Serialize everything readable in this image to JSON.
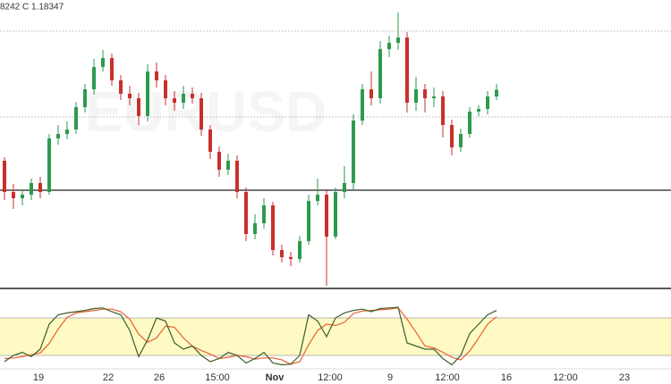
{
  "chart_data": {
    "type": "candlestick",
    "symbol_watermark": "EURUSD",
    "ohlc_text": "8242  C 1.18347",
    "up_color": "#2e9a4e",
    "down_color": "#c9302c",
    "ylim": [
      1.17235,
      1.1885
    ],
    "open": [
      1.1795,
      1.17775,
      1.1774,
      1.1776,
      1.17825,
      1.17775,
      1.18075,
      1.181,
      1.18125,
      1.1825,
      1.1835,
      1.18475,
      1.18525,
      1.184,
      1.18325,
      1.183,
      1.182,
      1.1845,
      1.184,
      1.183,
      1.18275,
      1.18325,
      1.183,
      1.18125,
      1.18,
      1.179,
      1.1795,
      1.17775,
      1.1754,
      1.176,
      1.177,
      1.1745,
      1.1741,
      1.174,
      1.175,
      1.17725,
      1.1776,
      1.17525,
      1.17775,
      1.17825,
      1.18175,
      1.1835,
      1.183,
      1.18575,
      1.1861,
      1.1864,
      1.18275,
      1.1835,
      1.183,
      1.1831,
      1.1815,
      1.18025,
      1.181,
      1.18225,
      1.1824,
      1.1831
    ],
    "high": [
      1.1797,
      1.1782,
      1.1779,
      1.1785,
      1.1786,
      1.181,
      1.1815,
      1.1817,
      1.1828,
      1.1838,
      1.1852,
      1.1857,
      1.1855,
      1.1843,
      1.1837,
      1.1833,
      1.1849,
      1.185,
      1.1843,
      1.1834,
      1.1837,
      1.1836,
      1.1833,
      1.1815,
      1.1803,
      1.1799,
      1.1798,
      1.178,
      1.1765,
      1.1774,
      1.1772,
      1.1748,
      1.1744,
      1.1753,
      1.1776,
      1.1785,
      1.1779,
      1.178,
      1.1792,
      1.1821,
      1.1838,
      1.1845,
      1.1862,
      1.1865,
      1.1878,
      1.1867,
      1.1842,
      1.1838,
      1.1836,
      1.1834,
      1.1818,
      1.1813,
      1.1825,
      1.1826,
      1.1834,
      1.1838
    ],
    "low": [
      1.1773,
      1.1768,
      1.177,
      1.1773,
      1.1774,
      1.1776,
      1.1804,
      1.1807,
      1.181,
      1.1822,
      1.1832,
      1.1845,
      1.1837,
      1.1829,
      1.1826,
      1.1815,
      1.1817,
      1.1836,
      1.1826,
      1.1823,
      1.1824,
      1.1827,
      1.1809,
      1.1796,
      1.1786,
      1.1787,
      1.1774,
      1.175,
      1.1751,
      1.1757,
      1.1742,
      1.1738,
      1.1736,
      1.1738,
      1.1748,
      1.177,
      1.1725,
      1.1751,
      1.1774,
      1.1779,
      1.1815,
      1.1826,
      1.1827,
      1.1853,
      1.1857,
      1.1822,
      1.1823,
      1.1822,
      1.1825,
      1.1808,
      1.1798,
      1.18,
      1.1808,
      1.182,
      1.1821,
      1.1829
    ],
    "close": [
      1.17775,
      1.1774,
      1.1776,
      1.17825,
      1.17775,
      1.18075,
      1.181,
      1.18125,
      1.1825,
      1.1835,
      1.18475,
      1.18525,
      1.184,
      1.18325,
      1.183,
      1.182,
      1.1845,
      1.184,
      1.183,
      1.18275,
      1.18325,
      1.183,
      1.18125,
      1.18,
      1.179,
      1.1795,
      1.17775,
      1.1754,
      1.176,
      1.177,
      1.1745,
      1.1741,
      1.174,
      1.175,
      1.17725,
      1.1776,
      1.17525,
      1.17775,
      1.17825,
      1.18175,
      1.1835,
      1.183,
      1.18575,
      1.1861,
      1.1864,
      1.18275,
      1.1835,
      1.183,
      1.1831,
      1.1815,
      1.18025,
      1.181,
      1.18225,
      1.1824,
      1.1831,
      1.18347
    ],
    "levels": [
      {
        "value": 1.18675,
        "style": "dotted",
        "color": "#9e9e9e"
      },
      {
        "value": 1.18195,
        "style": "dotted",
        "color": "#9e9e9e"
      },
      {
        "value": 1.17785,
        "style": "solid",
        "color": "#222222"
      }
    ],
    "x_labels": [
      "19",
      "22",
      "26",
      "15:00",
      "Nov",
      "12:00",
      "9",
      "12:00",
      "16",
      "12:00",
      "23"
    ],
    "oscillator": {
      "type": "line",
      "ylim": [
        0,
        100
      ],
      "band": [
        20,
        80
      ],
      "band_color": "#fff9c4",
      "series": [
        {
          "color": "#3b5e2b",
          "values": [
            10,
            20,
            25,
            18,
            30,
            70,
            85,
            88,
            90,
            92,
            95,
            96,
            90,
            85,
            60,
            18,
            45,
            80,
            75,
            40,
            30,
            35,
            20,
            10,
            15,
            25,
            20,
            8,
            15,
            25,
            8,
            5,
            6,
            20,
            85,
            75,
            50,
            80,
            88,
            92,
            94,
            90,
            95,
            96,
            97,
            40,
            35,
            30,
            30,
            15,
            5,
            20,
            55,
            70,
            85,
            92
          ]
        },
        {
          "color": "#e8612c",
          "values": [
            15,
            16,
            18,
            21,
            24,
            39,
            62,
            81,
            88,
            90,
            92,
            94,
            94,
            90,
            78,
            54,
            41,
            48,
            67,
            65,
            48,
            35,
            28,
            22,
            15,
            17,
            20,
            18,
            14,
            16,
            16,
            13,
            6,
            10,
            37,
            60,
            70,
            68,
            73,
            87,
            91,
            92,
            93,
            94,
            96,
            78,
            57,
            35,
            32,
            25,
            17,
            13,
            27,
            48,
            70,
            82
          ]
        }
      ]
    }
  }
}
